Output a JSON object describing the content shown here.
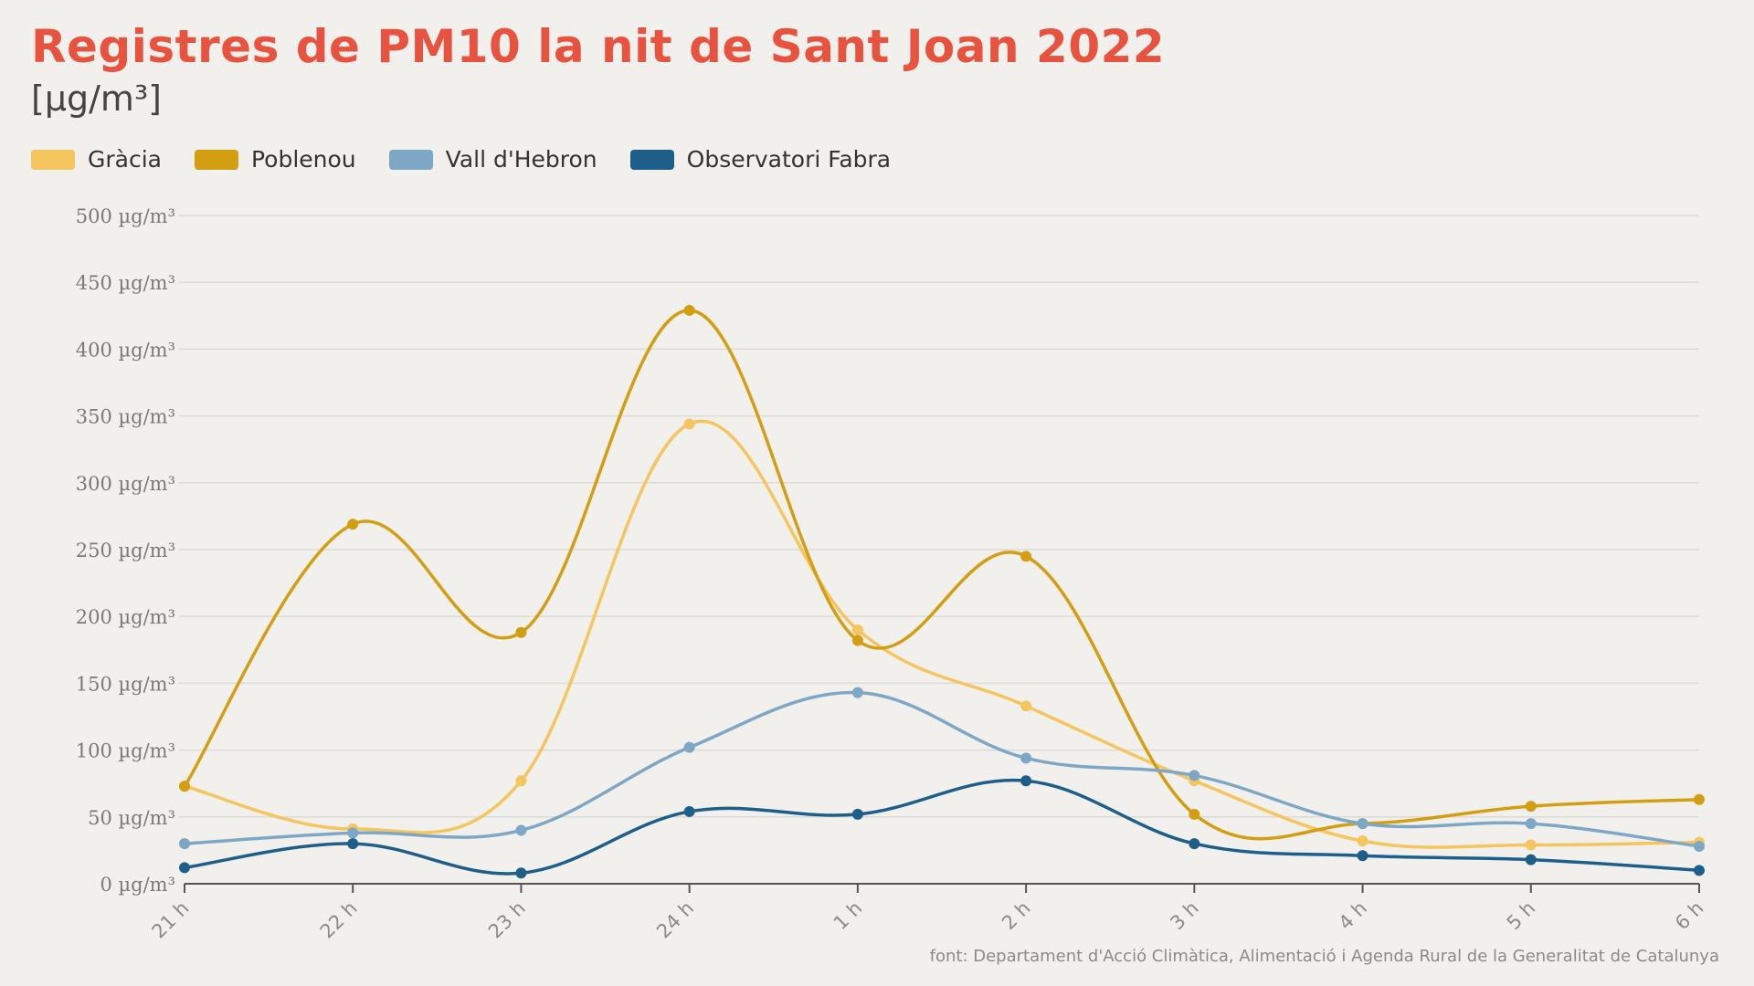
{
  "header": {
    "title": "Registres de PM10 la nit de Sant Joan 2022",
    "unit": "[μg/m³]"
  },
  "footer": {
    "source": "font: Departament d'Acció Climàtica, Alimentació i Agenda Rural de la Generalitat de Catalunya"
  },
  "chart_data": {
    "type": "line",
    "title": "Registres de PM10 la nit de Sant Joan 2022",
    "ylabel": "[μg/m³]",
    "xlabel": "",
    "categories": [
      "21 h",
      "22 h",
      "23 h",
      "24 h",
      "1 h",
      "2 h",
      "3 h",
      "4 h",
      "5 h",
      "6 h"
    ],
    "y_ticks": [
      0,
      50,
      100,
      150,
      200,
      250,
      300,
      350,
      400,
      450,
      500
    ],
    "y_tick_labels": [
      "0 µg/m³",
      "50 µg/m³",
      "100 µg/m³",
      "150 µg/m³",
      "200 µg/m³",
      "250 µg/m³",
      "300 µg/m³",
      "350 µg/m³",
      "400 µg/m³",
      "450 µg/m³",
      "500 µg/m³"
    ],
    "ylim": [
      0,
      500
    ],
    "grid": true,
    "legend_position": "top-left",
    "series": [
      {
        "name": "Gràcia",
        "color": "#f5c55f",
        "values": [
          73,
          41,
          77,
          344,
          190,
          133,
          77,
          32,
          29,
          31
        ]
      },
      {
        "name": "Poblenou",
        "color": "#d49e12",
        "values": [
          73,
          269,
          188,
          429,
          182,
          245,
          52,
          45,
          58,
          63
        ]
      },
      {
        "name": "Vall d'Hebron",
        "color": "#7ea7c6",
        "values": [
          30,
          38,
          40,
          102,
          143,
          94,
          81,
          45,
          45,
          28
        ]
      },
      {
        "name": "Observatori Fabra",
        "color": "#1d5f8a",
        "values": [
          12,
          30,
          8,
          54,
          52,
          77,
          30,
          21,
          18,
          10
        ]
      }
    ]
  }
}
